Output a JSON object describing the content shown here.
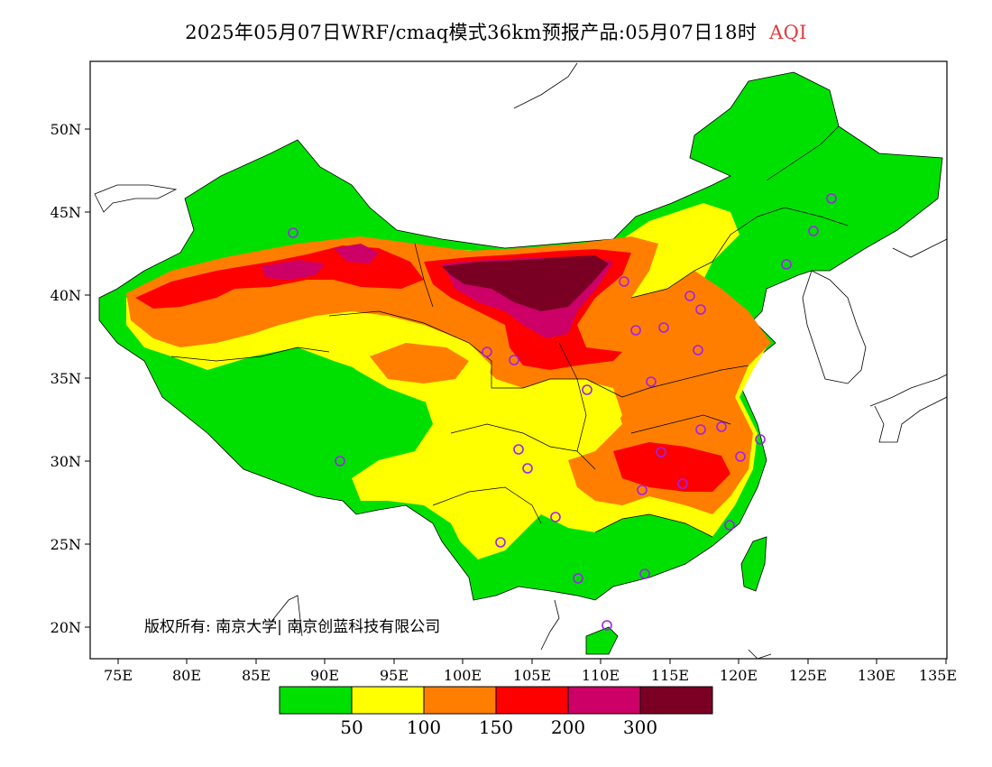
{
  "title": {
    "main": "2025年05月07日WRF/cmaq模式36km预报产品:05月07日18时",
    "variable": "AQI",
    "variable_color": "#e23b3b"
  },
  "axes": {
    "lat_ticks": [
      "50N",
      "45N",
      "40N",
      "35N",
      "30N",
      "25N",
      "20N"
    ],
    "lon_ticks": [
      "75E",
      "80E",
      "85E",
      "90E",
      "95E",
      "100E",
      "105E",
      "110E",
      "115E",
      "120E",
      "125E",
      "130E",
      "135E"
    ]
  },
  "legend": {
    "colors": [
      "#00e000",
      "#ffff00",
      "#ff7e00",
      "#ff0000",
      "#cc0066",
      "#7a0023"
    ],
    "labels": [
      "50",
      "100",
      "150",
      "200",
      "300"
    ]
  },
  "map": {
    "background": "#ffffff",
    "land_outline": "#000000",
    "station_color": "#a020f0"
  },
  "copyright": "版权所有: 南京大学| 南京创蓝科技有限公司"
}
